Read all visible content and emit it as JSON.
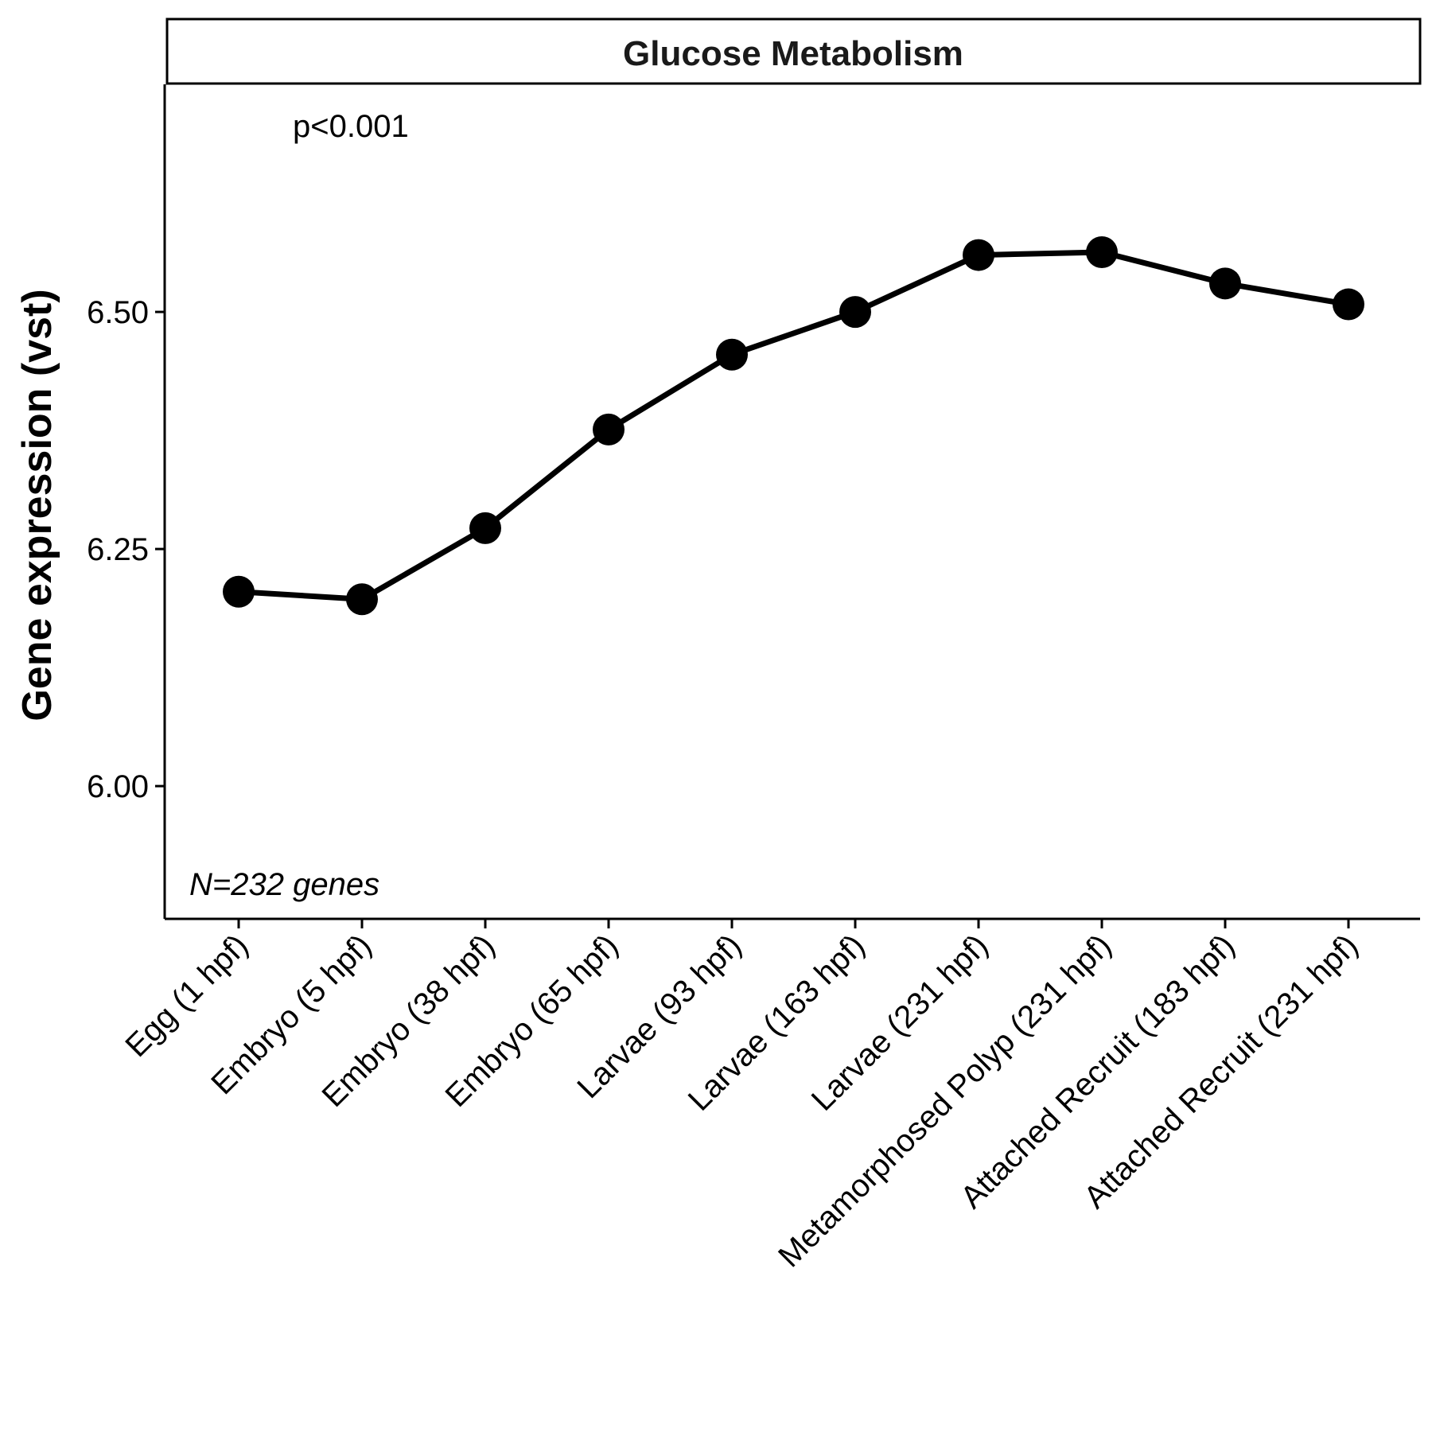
{
  "chart_data": {
    "type": "line",
    "title": "Glucose Metabolism",
    "xlabel": "",
    "ylabel": "Gene expression (vst)",
    "categories": [
      "Egg (1 hpf)",
      "Embryo (5 hpf)",
      "Embryo (38 hpf)",
      "Embryo (65 hpf)",
      "Larvae (93 hpf)",
      "Larvae (163 hpf)",
      "Larvae (231 hpf)",
      "Metamorphosed Polyp (231 hpf)",
      "Attached Recruit (183 hpf)",
      "Attached Recruit (231 hpf)"
    ],
    "series": [
      {
        "values": [
          6.205,
          6.197,
          6.272,
          6.376,
          6.455,
          6.5,
          6.56,
          6.563,
          6.53,
          6.508
        ]
      }
    ],
    "ylim": [
      5.86,
      6.74
    ],
    "yticks": [
      "6.00",
      "6.25",
      "6.50"
    ],
    "ytick_values": [
      6.0,
      6.25,
      6.5
    ],
    "annotations": {
      "p_value": "p<0.001",
      "n_genes": "N=232 genes"
    },
    "grid": false,
    "legend": "none",
    "colors": {
      "line": "#000000",
      "points": "#000000",
      "strip_border": "#000000",
      "strip_text": "#1a1a1a"
    }
  }
}
